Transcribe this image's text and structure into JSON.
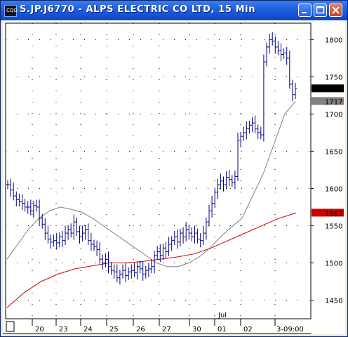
{
  "window": {
    "title": "S.JP.J6770 - ALPS ELECTRIC CO LTD, 15 Min",
    "icon": "chart-app-icon",
    "icon_text": "CQG"
  },
  "chart_data": {
    "type": "ohlc",
    "y_axis": {
      "ticks": [
        "1800",
        "1750",
        "1700",
        "1650",
        "1600",
        "1550",
        "1500",
        "1450"
      ],
      "ylim": [
        1425,
        1822
      ]
    },
    "x_axis": {
      "ticks": [
        "20",
        "23",
        "24",
        "25",
        "26",
        "27",
        "30",
        "01",
        "02",
        "3-09:00"
      ],
      "month_label": "Jul"
    },
    "price_labels": [
      {
        "value": "1734",
        "color": "#000000"
      },
      {
        "value": "1717",
        "color": "#808080"
      },
      {
        "value": "1567",
        "color": "#cc0000"
      }
    ],
    "series": [
      {
        "name": "price",
        "color": "#000080",
        "close": [
          1605,
          1598,
          1590,
          1585,
          1582,
          1580,
          1575,
          1575,
          1570,
          1577,
          1575,
          1560,
          1552,
          1540,
          1532,
          1528,
          1530,
          1527,
          1535,
          1530,
          1540,
          1545,
          1540,
          1555,
          1542,
          1535,
          1540,
          1545,
          1530,
          1525,
          1522,
          1518,
          1505,
          1500,
          1505,
          1495,
          1490,
          1488,
          1480,
          1485,
          1490,
          1483,
          1488,
          1490,
          1487,
          1495,
          1492,
          1485,
          1490,
          1492,
          1495,
          1510,
          1515,
          1510,
          1520,
          1515,
          1525,
          1530,
          1535,
          1528,
          1540,
          1535,
          1545,
          1540,
          1535,
          1540,
          1532,
          1530,
          1540,
          1555,
          1570,
          1580,
          1595,
          1605,
          1610,
          1605,
          1615,
          1612,
          1608,
          1616,
          1665,
          1670,
          1675,
          1680,
          1685,
          1688,
          1680,
          1675,
          1672,
          1770,
          1790,
          1800,
          1798,
          1790,
          1785,
          1780,
          1782,
          1775,
          1740,
          1726,
          1734
        ]
      },
      {
        "name": "moving-average-slow",
        "color": "#808080",
        "values": [
          1505,
          1525,
          1545,
          1560,
          1570,
          1575,
          1572,
          1568,
          1560,
          1550,
          1540,
          1530,
          1520,
          1510,
          1500,
          1495,
          1495,
          1500,
          1508,
          1520,
          1535,
          1548,
          1560,
          1590,
          1620,
          1660,
          1700,
          1717
        ]
      },
      {
        "name": "moving-average-long",
        "color": "#cc0000",
        "values": [
          1440,
          1460,
          1475,
          1485,
          1492,
          1496,
          1500,
          1500,
          1502,
          1505,
          1508,
          1512,
          1520,
          1530,
          1540,
          1550,
          1560,
          1567
        ]
      }
    ]
  }
}
